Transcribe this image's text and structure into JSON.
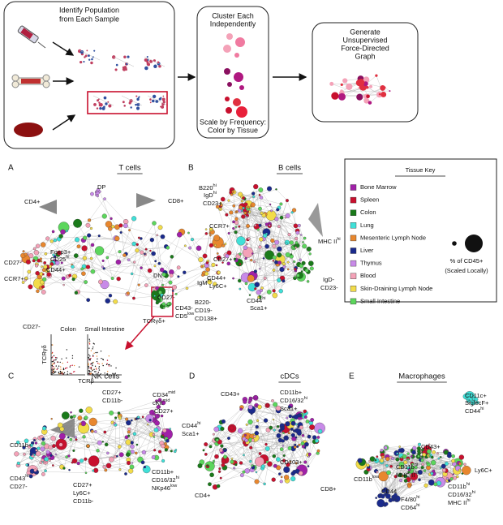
{
  "workflow": {
    "step1": [
      "Identify Population",
      "from Each Sample"
    ],
    "step2_title": [
      "Cluster Each",
      "Independently"
    ],
    "step2_note": [
      "Scale by Frequency:",
      "Color by Tissue"
    ],
    "step3": [
      "Generate",
      "Unsupervised",
      "Force-Directed",
      "Graph"
    ]
  },
  "panels": [
    {
      "letter": "A",
      "title": "T cells",
      "labels": [
        {
          "t": "DP"
        },
        {
          "t": "CD4+"
        },
        {
          "t": "CD8+"
        },
        {
          "t": "Foxp3+"
        },
        {
          "t": "CD25",
          "s": "hi"
        },
        {
          "t": "CD27-"
        },
        {
          "t": "CD44+"
        },
        {
          "t": "CCR7+"
        },
        {
          "t": "CD27-"
        },
        {
          "t": "DN"
        },
        {
          "t": "CD27-"
        },
        {
          "t": "CD43-"
        },
        {
          "t": "CD5",
          "s": "low"
        },
        {
          "t": "TCRγδ+"
        },
        {
          "t": "CCR7+"
        },
        {
          "t": "CD27+"
        },
        {
          "t": "CD44+"
        },
        {
          "t": "Ly6C+"
        }
      ],
      "inset": {
        "titles": [
          "Colon",
          "Small Intestine"
        ],
        "y_label": "TCRγδ",
        "x_label": "TCRβ"
      }
    },
    {
      "letter": "B",
      "title": "B cells",
      "labels": [
        {
          "t": "B220",
          "s": "hi"
        },
        {
          "t": "IgD",
          "s": "hi"
        },
        {
          "t": "CD23+"
        },
        {
          "t": "MHC II",
          "s": "hi"
        },
        {
          "t": "IgM",
          "s": "hi"
        },
        {
          "t": "IgD-"
        },
        {
          "t": "CD23-"
        },
        {
          "t": "CD44",
          "s": "hi"
        },
        {
          "t": "Sca1+"
        },
        {
          "t": "B220-"
        },
        {
          "t": "CD19-"
        },
        {
          "t": "CD138+"
        }
      ]
    },
    {
      "letter": "C",
      "title": "NK cells",
      "labels": [
        {
          "t": "CD27+"
        },
        {
          "t": "CD11b-"
        },
        {
          "t": "CD34",
          "s": "mid"
        },
        {
          "t": "cKit",
          "s": "mid"
        },
        {
          "t": "CD27+"
        },
        {
          "t": "CD44",
          "s": "hi"
        },
        {
          "t": "Sca1+"
        },
        {
          "t": "CD11b+"
        },
        {
          "t": "CD11b+"
        },
        {
          "t": "CD16/32",
          "s": "hi"
        },
        {
          "t": "NKp46",
          "s": "low"
        },
        {
          "t": "CD43",
          "s": "hi"
        },
        {
          "t": "CD27-"
        },
        {
          "t": "CD27+"
        },
        {
          "t": "Ly6C+"
        },
        {
          "t": "CD11b-"
        }
      ]
    },
    {
      "letter": "D",
      "title": "cDCs",
      "labels": [
        {
          "t": "CD43+"
        },
        {
          "t": "CD11b+"
        },
        {
          "t": "CD16/32",
          "s": "hi"
        },
        {
          "t": "Sca1+"
        },
        {
          "t": "CD103+"
        },
        {
          "t": "CD4+"
        },
        {
          "t": "CD8+"
        }
      ]
    },
    {
      "letter": "E",
      "title": "Macrophages",
      "labels": [
        {
          "t": "CD11c+"
        },
        {
          "t": "SiglecF+"
        },
        {
          "t": "CD44",
          "s": "hi"
        },
        {
          "t": "CD43+"
        },
        {
          "t": "Ly6C+"
        },
        {
          "t": "CD11b",
          "s": "hi"
        },
        {
          "t": "MHC II",
          "s": "hi"
        },
        {
          "t": "CD11b",
          "s": "hi"
        },
        {
          "t": "CD16/32",
          "s": "hi"
        },
        {
          "t": "MHC II",
          "s": "hi"
        },
        {
          "t": "CD11b",
          "s": "low"
        },
        {
          "t": "CD44"
        },
        {
          "t": "F4/80",
          "s": "hi"
        },
        {
          "t": "CD64",
          "s": "hi"
        }
      ]
    }
  ],
  "tissue_key": {
    "title": "Tissue Key",
    "items": [
      {
        "name": "Bone Marrow",
        "color": "#a020a8"
      },
      {
        "name": "Spleen",
        "color": "#c8102e"
      },
      {
        "name": "Colon",
        "color": "#1a7a1a"
      },
      {
        "name": "Lung",
        "color": "#40e0d8"
      },
      {
        "name": "Mesenteric Lymph Node",
        "color": "#e8872e"
      },
      {
        "name": "Liver",
        "color": "#1a2a8c"
      },
      {
        "name": "Thymus",
        "color": "#c88ae8"
      },
      {
        "name": "Blood",
        "color": "#f4a2b8"
      },
      {
        "name": "Skin-Draining Lymph Node",
        "color": "#f2dc4a"
      },
      {
        "name": "Small Intestine",
        "color": "#5cd65c"
      }
    ],
    "size_label": [
      "% of CD45+",
      "(Scaled Locally)"
    ]
  }
}
